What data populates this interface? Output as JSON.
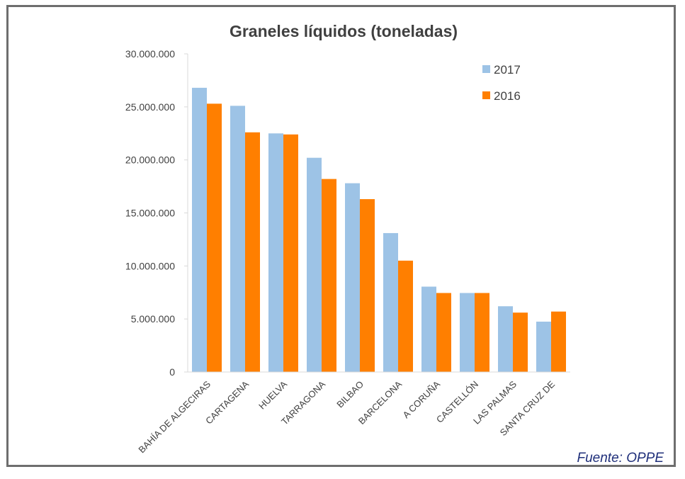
{
  "source": "Fuente: OPPE",
  "chart_data": {
    "type": "bar",
    "title": "Graneles líquidos (toneladas)",
    "xlabel": "",
    "ylabel": "",
    "categories": [
      "BAHÍA DE ALGECIRAS",
      "CARTAGENA",
      "HUELVA",
      "TARRAGONA",
      "BILBAO",
      "BARCELONA",
      "A CORUÑA",
      "CASTELLÓN",
      "LAS PALMAS",
      "SANTA CRUZ DE"
    ],
    "series": [
      {
        "name": "2017",
        "color": "#9dc3e6",
        "values": [
          26800000,
          25100000,
          22500000,
          20200000,
          17800000,
          13100000,
          8050000,
          7450000,
          6200000,
          4750000
        ]
      },
      {
        "name": "2016",
        "color": "#ff7f00",
        "values": [
          25300000,
          22600000,
          22400000,
          18200000,
          16300000,
          10500000,
          7450000,
          7450000,
          5600000,
          5700000
        ]
      }
    ],
    "ylim": [
      0,
      30000000
    ],
    "yticks": [
      0,
      5000000,
      10000000,
      15000000,
      20000000,
      25000000,
      30000000
    ],
    "ytick_labels": [
      "0",
      "5.000.000",
      "10.000.000",
      "15.000.000",
      "20.000.000",
      "25.000.000",
      "30.000.000"
    ],
    "grid": false,
    "legend_position": "top-right"
  }
}
